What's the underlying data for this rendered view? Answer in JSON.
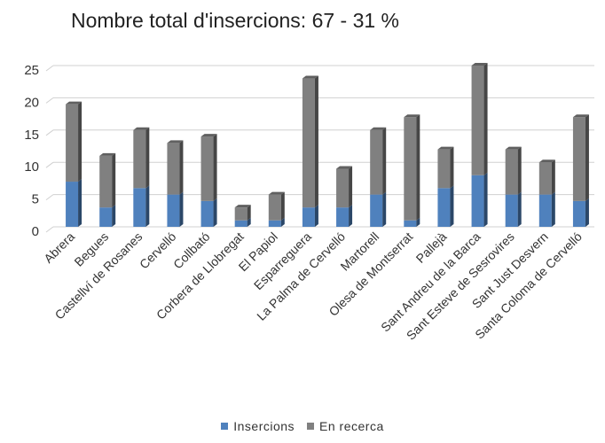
{
  "chart_data": {
    "type": "bar",
    "stacked": true,
    "three_d": true,
    "title": "Nombre total d'insercions: 67 - 31 %",
    "xlabel": "",
    "ylabel": "",
    "ylim": [
      0,
      25
    ],
    "yticks": [
      0,
      5,
      10,
      15,
      20,
      25
    ],
    "grid": true,
    "legend_position": "bottom",
    "categories": [
      "Abrera",
      "Begues",
      "Castellví de Rosanes",
      "Cervelló",
      "Collbató",
      "Corbera de Llobregat",
      "El Papiol",
      "Esparreguera",
      "La Palma de Cervelló",
      "Martorell",
      "Olesa de Montserrat",
      "Pallejà",
      "Sant Andreu de la Barca",
      "Sant Esteve de Sesrovires",
      "Sant Just Desvern",
      "Santa Coloma de Cervelló"
    ],
    "series": [
      {
        "name": "Insercions",
        "color": "#4f81bd",
        "values": [
          7,
          3,
          6,
          5,
          4,
          1,
          1,
          3,
          3,
          5,
          1,
          6,
          8,
          5,
          5,
          4
        ]
      },
      {
        "name": "En recerca",
        "color": "#808080",
        "values": [
          12,
          8,
          9,
          8,
          10,
          2,
          4,
          20,
          6,
          10,
          16,
          6,
          17,
          7,
          5,
          13
        ]
      }
    ]
  }
}
